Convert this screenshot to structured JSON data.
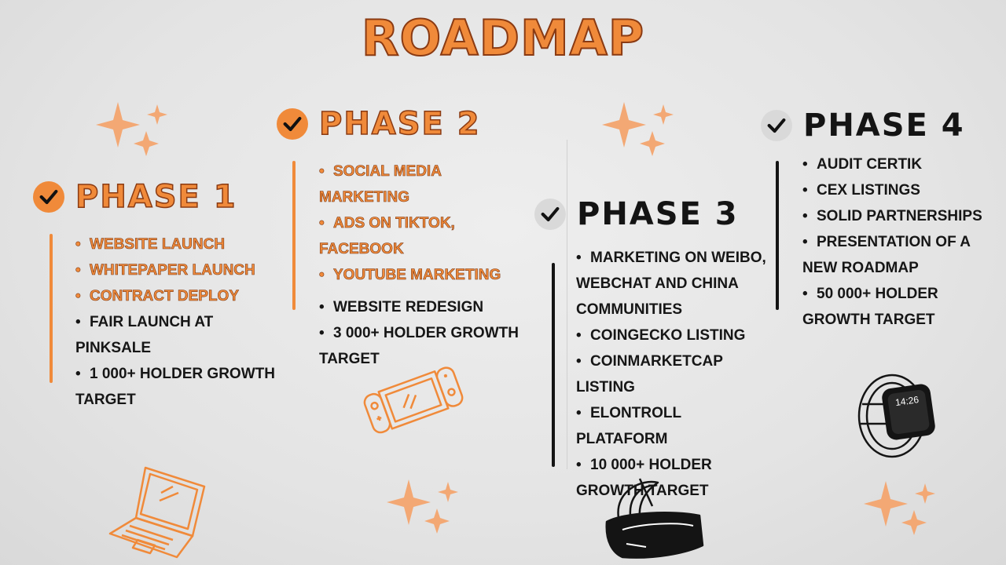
{
  "title": "ROADMAP",
  "colors": {
    "accent": "#f08a3a",
    "ink": "#141414",
    "check_done": "#f08a3a",
    "check_pending": "#d9d9d9"
  },
  "phases": [
    {
      "label": "PHASE 1",
      "status": "done",
      "items": [
        {
          "text": "WEBSITE LAUNCH",
          "highlight": true
        },
        {
          "text": "WHITEPAPER LAUNCH",
          "highlight": true
        },
        {
          "text": "CONTRACT DEPLOY",
          "highlight": true
        },
        {
          "text": "FAIR LAUNCH AT PINKSALE",
          "highlight": false
        },
        {
          "text": "1 000+ HOLDER GROWTH TARGET",
          "highlight": false
        }
      ]
    },
    {
      "label": "PHASE 2",
      "status": "done",
      "items": [
        {
          "text": "SOCIAL MEDIA MARKETING",
          "highlight": true
        },
        {
          "text": "ADS ON TIKTOK, FACEBOOK",
          "highlight": true
        },
        {
          "text": "YOUTUBE MARKETING",
          "highlight": true
        },
        {
          "text": "WEBSITE REDESIGN",
          "highlight": false
        },
        {
          "text": "3 000+ HOLDER GROWTH TARGET",
          "highlight": false
        }
      ]
    },
    {
      "label": "PHASE 3",
      "status": "pending",
      "items": [
        {
          "text": "MARKETING ON WEIBO, WEBCHAT AND CHINA COMMUNITIES",
          "highlight": false
        },
        {
          "text": "COINGECKO LISTING",
          "highlight": false
        },
        {
          "text": "COINMARKETCAP LISTING",
          "highlight": false
        },
        {
          "text": "ELONTROLL PLATAFORM",
          "highlight": false
        },
        {
          "text": "10 000+ HOLDER GROWTH TARGET",
          "highlight": false
        }
      ]
    },
    {
      "label": "PHASE 4",
      "status": "pending",
      "items": [
        {
          "text": "AUDIT CERTIK",
          "highlight": false
        },
        {
          "text": "CEX LISTINGS",
          "highlight": false
        },
        {
          "text": "SOLID PARTNERSHIPS",
          "highlight": false
        },
        {
          "text": "PRESENTATION OF A NEW ROADMAP",
          "highlight": false
        },
        {
          "text": "50 000+ HOLDER GROWTH TARGET",
          "highlight": false
        }
      ]
    }
  ],
  "watch_time": "14:26",
  "icons": [
    "sparkle-icon",
    "check-icon",
    "laptop-icon",
    "game-console-icon",
    "vr-headset-icon",
    "smartwatch-icon"
  ]
}
